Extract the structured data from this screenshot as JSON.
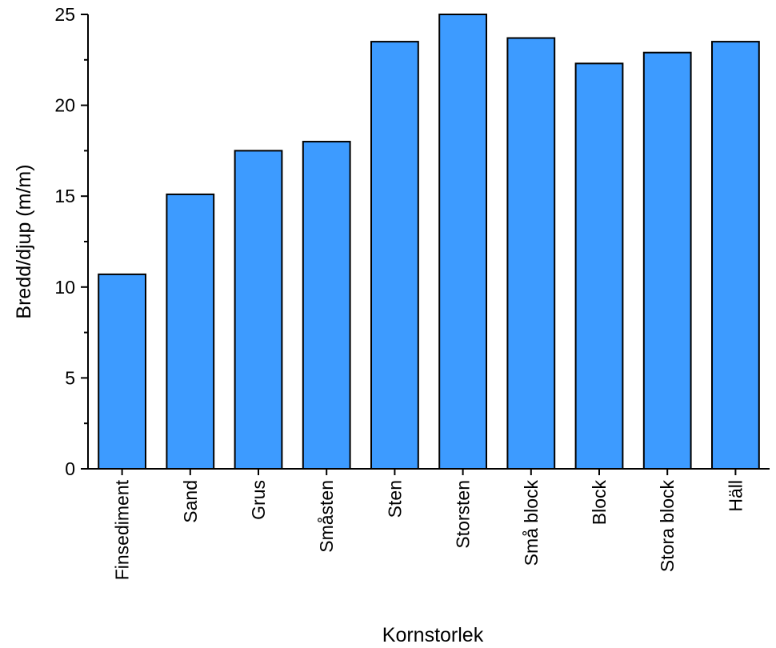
{
  "chart_data": {
    "type": "bar",
    "title": "",
    "xlabel": "Kornstorlek",
    "ylabel": "Bredd/djup (m/m)",
    "categories": [
      "Finsediment",
      "Sand",
      "Grus",
      "Småsten",
      "Sten",
      "Storsten",
      "Små block",
      "Block",
      "Stora block",
      "Häll"
    ],
    "values": [
      10.7,
      15.1,
      17.5,
      18.0,
      23.5,
      25.0,
      23.7,
      22.3,
      22.9,
      23.5
    ],
    "ylim": [
      0,
      25
    ],
    "yticks": [
      0,
      5,
      10,
      15,
      20,
      25
    ],
    "grid": false,
    "legend": "none",
    "bar_color": "#3d9bff",
    "edge_color": "#000000"
  }
}
